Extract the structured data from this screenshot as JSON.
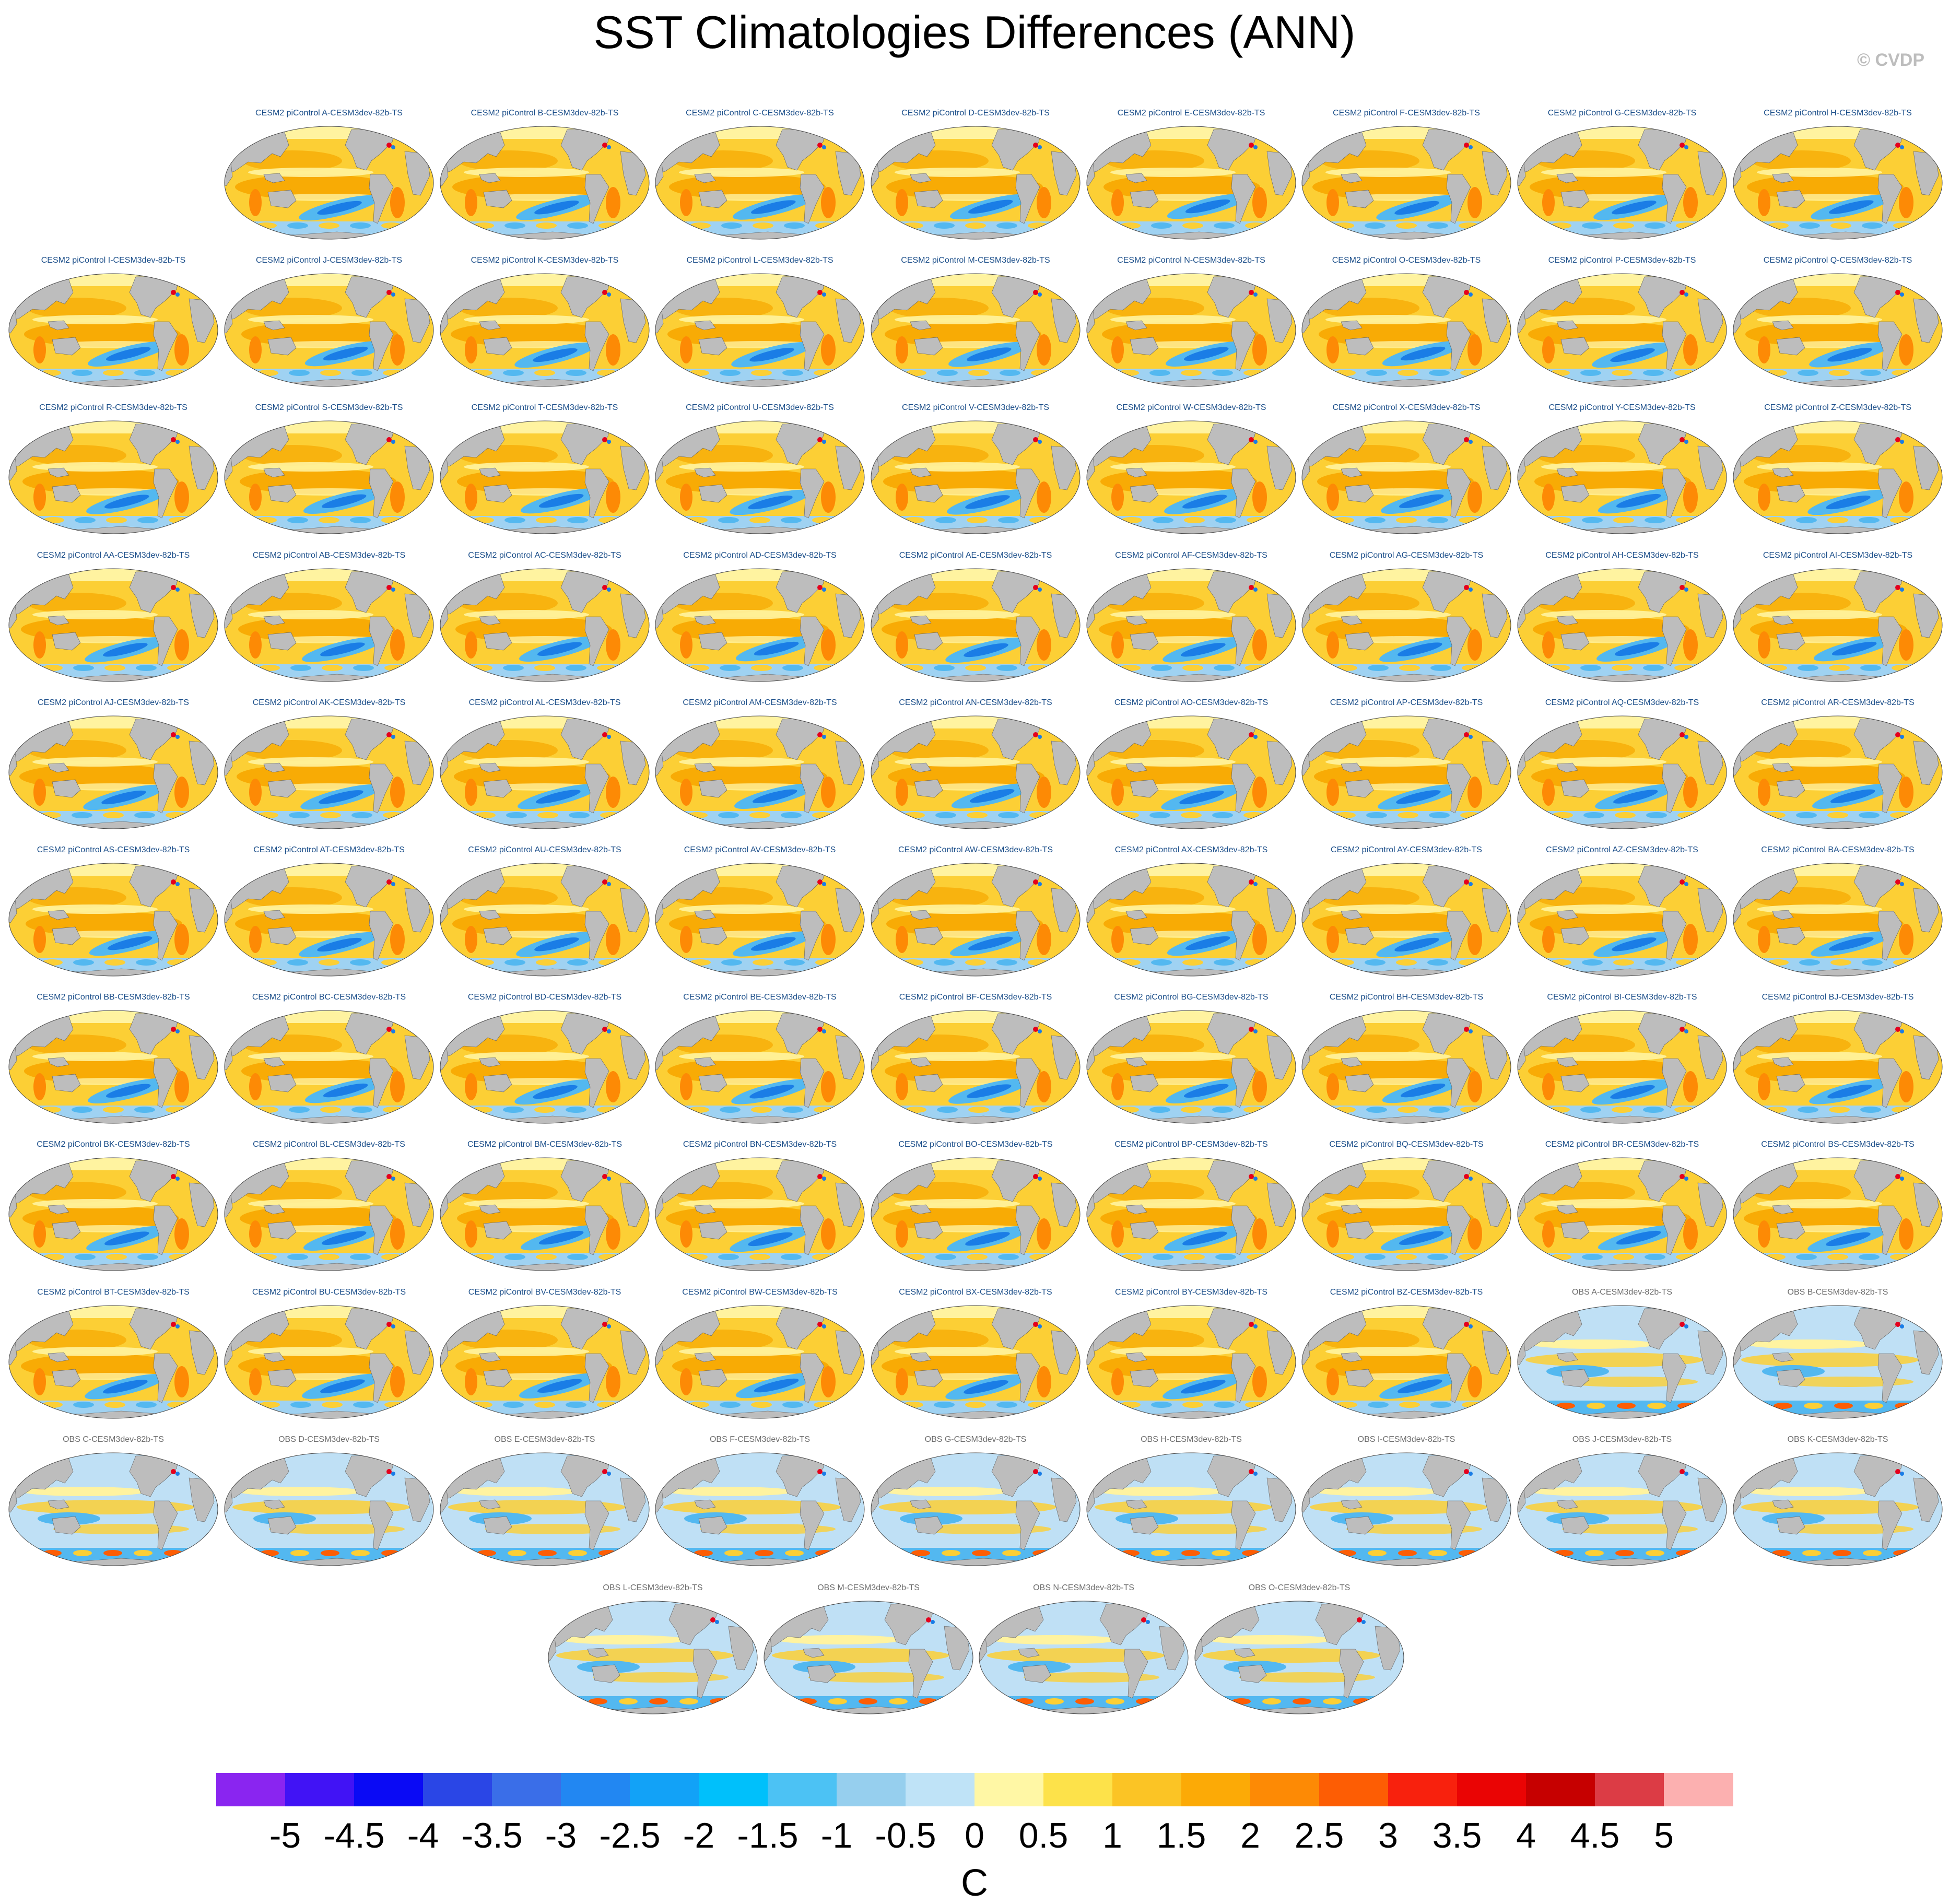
{
  "figure": {
    "title": "SST Climatologies Differences (ANN)",
    "watermark": "© CVDP"
  },
  "colors": {
    "land": "#bdbdbd",
    "ocean_warm": "#fccf35",
    "ocean_warm_strong": "#f7a600",
    "ocean_cool": "#53b8f0",
    "ocean_cool_strong": "#1a7de6",
    "ocean_neutral": "#fff3a0",
    "hot_spot": "#e5001c"
  },
  "chart_data": {
    "type": "heatmap",
    "variable": "SST climatology difference",
    "season": "ANN",
    "projection": "Robinson (Pacific-centered)",
    "panels": [
      {
        "label": "CESM2 piControl A-CESM3dev-82b-TS",
        "group": "model"
      },
      {
        "label": "CESM2 piControl B-CESM3dev-82b-TS",
        "group": "model"
      },
      {
        "label": "CESM2 piControl C-CESM3dev-82b-TS",
        "group": "model"
      },
      {
        "label": "CESM2 piControl D-CESM3dev-82b-TS",
        "group": "model"
      },
      {
        "label": "CESM2 piControl E-CESM3dev-82b-TS",
        "group": "model"
      },
      {
        "label": "CESM2 piControl F-CESM3dev-82b-TS",
        "group": "model"
      },
      {
        "label": "CESM2 piControl G-CESM3dev-82b-TS",
        "group": "model"
      },
      {
        "label": "CESM2 piControl H-CESM3dev-82b-TS",
        "group": "model"
      },
      {
        "label": "CESM2 piControl I-CESM3dev-82b-TS",
        "group": "model"
      },
      {
        "label": "CESM2 piControl J-CESM3dev-82b-TS",
        "group": "model"
      },
      {
        "label": "CESM2 piControl K-CESM3dev-82b-TS",
        "group": "model"
      },
      {
        "label": "CESM2 piControl L-CESM3dev-82b-TS",
        "group": "model"
      },
      {
        "label": "CESM2 piControl M-CESM3dev-82b-TS",
        "group": "model"
      },
      {
        "label": "CESM2 piControl N-CESM3dev-82b-TS",
        "group": "model"
      },
      {
        "label": "CESM2 piControl O-CESM3dev-82b-TS",
        "group": "model"
      },
      {
        "label": "CESM2 piControl P-CESM3dev-82b-TS",
        "group": "model"
      },
      {
        "label": "CESM2 piControl Q-CESM3dev-82b-TS",
        "group": "model"
      },
      {
        "label": "CESM2 piControl R-CESM3dev-82b-TS",
        "group": "model"
      },
      {
        "label": "CESM2 piControl S-CESM3dev-82b-TS",
        "group": "model"
      },
      {
        "label": "CESM2 piControl T-CESM3dev-82b-TS",
        "group": "model"
      },
      {
        "label": "CESM2 piControl U-CESM3dev-82b-TS",
        "group": "model"
      },
      {
        "label": "CESM2 piControl V-CESM3dev-82b-TS",
        "group": "model"
      },
      {
        "label": "CESM2 piControl W-CESM3dev-82b-TS",
        "group": "model"
      },
      {
        "label": "CESM2 piControl X-CESM3dev-82b-TS",
        "group": "model"
      },
      {
        "label": "CESM2 piControl Y-CESM3dev-82b-TS",
        "group": "model"
      },
      {
        "label": "CESM2 piControl Z-CESM3dev-82b-TS",
        "group": "model"
      },
      {
        "label": "CESM2 piControl AA-CESM3dev-82b-TS",
        "group": "model"
      },
      {
        "label": "CESM2 piControl AB-CESM3dev-82b-TS",
        "group": "model"
      },
      {
        "label": "CESM2 piControl AC-CESM3dev-82b-TS",
        "group": "model"
      },
      {
        "label": "CESM2 piControl AD-CESM3dev-82b-TS",
        "group": "model"
      },
      {
        "label": "CESM2 piControl AE-CESM3dev-82b-TS",
        "group": "model"
      },
      {
        "label": "CESM2 piControl AF-CESM3dev-82b-TS",
        "group": "model"
      },
      {
        "label": "CESM2 piControl AG-CESM3dev-82b-TS",
        "group": "model"
      },
      {
        "label": "CESM2 piControl AH-CESM3dev-82b-TS",
        "group": "model"
      },
      {
        "label": "CESM2 piControl AI-CESM3dev-82b-TS",
        "group": "model"
      },
      {
        "label": "CESM2 piControl AJ-CESM3dev-82b-TS",
        "group": "model"
      },
      {
        "label": "CESM2 piControl AK-CESM3dev-82b-TS",
        "group": "model"
      },
      {
        "label": "CESM2 piControl AL-CESM3dev-82b-TS",
        "group": "model"
      },
      {
        "label": "CESM2 piControl AM-CESM3dev-82b-TS",
        "group": "model"
      },
      {
        "label": "CESM2 piControl AN-CESM3dev-82b-TS",
        "group": "model"
      },
      {
        "label": "CESM2 piControl AO-CESM3dev-82b-TS",
        "group": "model"
      },
      {
        "label": "CESM2 piControl AP-CESM3dev-82b-TS",
        "group": "model"
      },
      {
        "label": "CESM2 piControl AQ-CESM3dev-82b-TS",
        "group": "model"
      },
      {
        "label": "CESM2 piControl AR-CESM3dev-82b-TS",
        "group": "model"
      },
      {
        "label": "CESM2 piControl AS-CESM3dev-82b-TS",
        "group": "model"
      },
      {
        "label": "CESM2 piControl AT-CESM3dev-82b-TS",
        "group": "model"
      },
      {
        "label": "CESM2 piControl AU-CESM3dev-82b-TS",
        "group": "model"
      },
      {
        "label": "CESM2 piControl AV-CESM3dev-82b-TS",
        "group": "model"
      },
      {
        "label": "CESM2 piControl AW-CESM3dev-82b-TS",
        "group": "model"
      },
      {
        "label": "CESM2 piControl AX-CESM3dev-82b-TS",
        "group": "model"
      },
      {
        "label": "CESM2 piControl AY-CESM3dev-82b-TS",
        "group": "model"
      },
      {
        "label": "CESM2 piControl AZ-CESM3dev-82b-TS",
        "group": "model"
      },
      {
        "label": "CESM2 piControl BA-CESM3dev-82b-TS",
        "group": "model"
      },
      {
        "label": "CESM2 piControl BB-CESM3dev-82b-TS",
        "group": "model"
      },
      {
        "label": "CESM2 piControl BC-CESM3dev-82b-TS",
        "group": "model"
      },
      {
        "label": "CESM2 piControl BD-CESM3dev-82b-TS",
        "group": "model"
      },
      {
        "label": "CESM2 piControl BE-CESM3dev-82b-TS",
        "group": "model"
      },
      {
        "label": "CESM2 piControl BF-CESM3dev-82b-TS",
        "group": "model"
      },
      {
        "label": "CESM2 piControl BG-CESM3dev-82b-TS",
        "group": "model"
      },
      {
        "label": "CESM2 piControl BH-CESM3dev-82b-TS",
        "group": "model"
      },
      {
        "label": "CESM2 piControl BI-CESM3dev-82b-TS",
        "group": "model"
      },
      {
        "label": "CESM2 piControl BJ-CESM3dev-82b-TS",
        "group": "model"
      },
      {
        "label": "CESM2 piControl BK-CESM3dev-82b-TS",
        "group": "model"
      },
      {
        "label": "CESM2 piControl BL-CESM3dev-82b-TS",
        "group": "model"
      },
      {
        "label": "CESM2 piControl BM-CESM3dev-82b-TS",
        "group": "model"
      },
      {
        "label": "CESM2 piControl BN-CESM3dev-82b-TS",
        "group": "model"
      },
      {
        "label": "CESM2 piControl BO-CESM3dev-82b-TS",
        "group": "model"
      },
      {
        "label": "CESM2 piControl BP-CESM3dev-82b-TS",
        "group": "model"
      },
      {
        "label": "CESM2 piControl BQ-CESM3dev-82b-TS",
        "group": "model"
      },
      {
        "label": "CESM2 piControl BR-CESM3dev-82b-TS",
        "group": "model"
      },
      {
        "label": "CESM2 piControl BS-CESM3dev-82b-TS",
        "group": "model"
      },
      {
        "label": "CESM2 piControl BT-CESM3dev-82b-TS",
        "group": "model"
      },
      {
        "label": "CESM2 piControl BU-CESM3dev-82b-TS",
        "group": "model"
      },
      {
        "label": "CESM2 piControl BV-CESM3dev-82b-TS",
        "group": "model"
      },
      {
        "label": "CESM2 piControl BW-CESM3dev-82b-TS",
        "group": "model"
      },
      {
        "label": "CESM2 piControl BX-CESM3dev-82b-TS",
        "group": "model"
      },
      {
        "label": "CESM2 piControl BY-CESM3dev-82b-TS",
        "group": "model"
      },
      {
        "label": "CESM2 piControl BZ-CESM3dev-82b-TS",
        "group": "model"
      },
      {
        "label": "OBS A-CESM3dev-82b-TS",
        "group": "obs"
      },
      {
        "label": "OBS B-CESM3dev-82b-TS",
        "group": "obs"
      },
      {
        "label": "OBS C-CESM3dev-82b-TS",
        "group": "obs"
      },
      {
        "label": "OBS D-CESM3dev-82b-TS",
        "group": "obs"
      },
      {
        "label": "OBS E-CESM3dev-82b-TS",
        "group": "obs"
      },
      {
        "label": "OBS F-CESM3dev-82b-TS",
        "group": "obs"
      },
      {
        "label": "OBS G-CESM3dev-82b-TS",
        "group": "obs"
      },
      {
        "label": "OBS H-CESM3dev-82b-TS",
        "group": "obs"
      },
      {
        "label": "OBS I-CESM3dev-82b-TS",
        "group": "obs"
      },
      {
        "label": "OBS J-CESM3dev-82b-TS",
        "group": "obs"
      },
      {
        "label": "OBS K-CESM3dev-82b-TS",
        "group": "obs"
      },
      {
        "label": "OBS L-CESM3dev-82b-TS",
        "group": "obs"
      },
      {
        "label": "OBS M-CESM3dev-82b-TS",
        "group": "obs"
      },
      {
        "label": "OBS N-CESM3dev-82b-TS",
        "group": "obs"
      },
      {
        "label": "OBS O-CESM3dev-82b-TS",
        "group": "obs"
      }
    ],
    "colorbar": {
      "units": "C",
      "range": [
        -5.5,
        5.5
      ],
      "ticks": [
        "-5",
        "-4.5",
        "-4",
        "-3.5",
        "-3",
        "-2.5",
        "-2",
        "-1.5",
        "-1",
        "-0.5",
        "0",
        "0.5",
        "1",
        "1.5",
        "2",
        "2.5",
        "3",
        "3.5",
        "4",
        "4.5",
        "5"
      ],
      "colors": [
        "#8a25f0",
        "#4113f5",
        "#0a0af5",
        "#2a46e6",
        "#3a6ee8",
        "#2287f2",
        "#12a2f7",
        "#00c0fb",
        "#4cc2f4",
        "#96cfee",
        "#bfe3f7",
        "#fff7a5",
        "#fde24a",
        "#fbc425",
        "#fcaa06",
        "#fd8a05",
        "#fd5d04",
        "#f8210d",
        "#ea0404",
        "#c60000",
        "#dc3c45",
        "#fcb0b0"
      ]
    }
  }
}
